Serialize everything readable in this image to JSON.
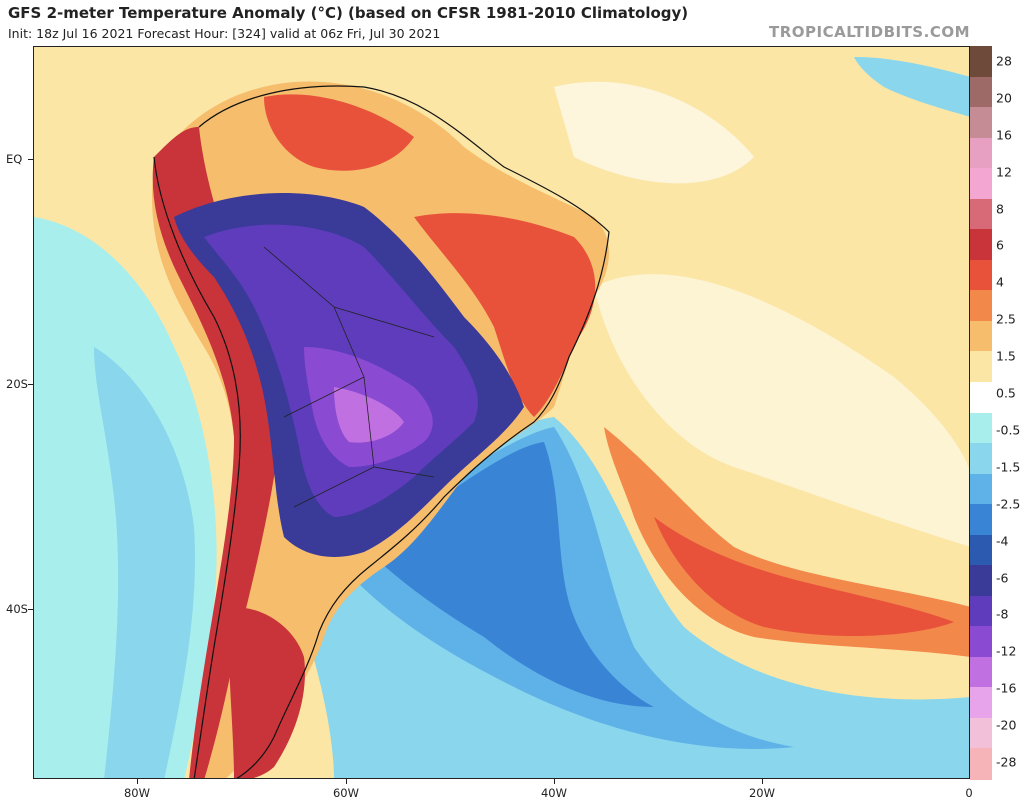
{
  "header": {
    "title": "GFS 2-meter Temperature Anomaly (°C) (based on CFSR 1981-2010 Climatology)",
    "subtitle": "Init: 18z Jul 16 2021   Forecast Hour: [324]   valid at 06z Fri, Jul 30 2021",
    "brand": "TROPICALTIDBITS.COM"
  },
  "axes": {
    "lat_labels": [
      "EQ",
      "20S",
      "40S"
    ],
    "lon_labels": [
      "80W",
      "60W",
      "40W",
      "20W",
      "0"
    ]
  },
  "colorbar": {
    "labels": [
      "28",
      "20",
      "16",
      "12",
      "8",
      "6",
      "4",
      "2.5",
      "1.5",
      "0.5",
      "-0.5",
      "-1.5",
      "-2.5",
      "-4",
      "-6",
      "-8",
      "-12",
      "-16",
      "-20",
      "-28"
    ],
    "colors": [
      "#6e4a3a",
      "#9e6a68",
      "#c58c96",
      "#e8a0c2",
      "#f4a6d2",
      "#d86a78",
      "#c8343a",
      "#e8523a",
      "#f2884a",
      "#f6bd6c",
      "#fbe6a6",
      "#ffffff",
      "#a8eeec",
      "#8ad6ec",
      "#5eb2e8",
      "#3a84d6",
      "#2c5ab0",
      "#3a3a98",
      "#5e3cbc",
      "#8a4ad2",
      "#c070e0",
      "#e8a4ea",
      "#f2c0d8",
      "#f6b4b8"
    ]
  },
  "colors": {
    "ocean_warm": "#fbe6a6",
    "ocean_cool": "#a8eeec",
    "land_cold": "#5e3cbc",
    "land_hot": "#c8343a",
    "anom_warm": "#e8523a",
    "anom_cool": "#3a84d6"
  }
}
